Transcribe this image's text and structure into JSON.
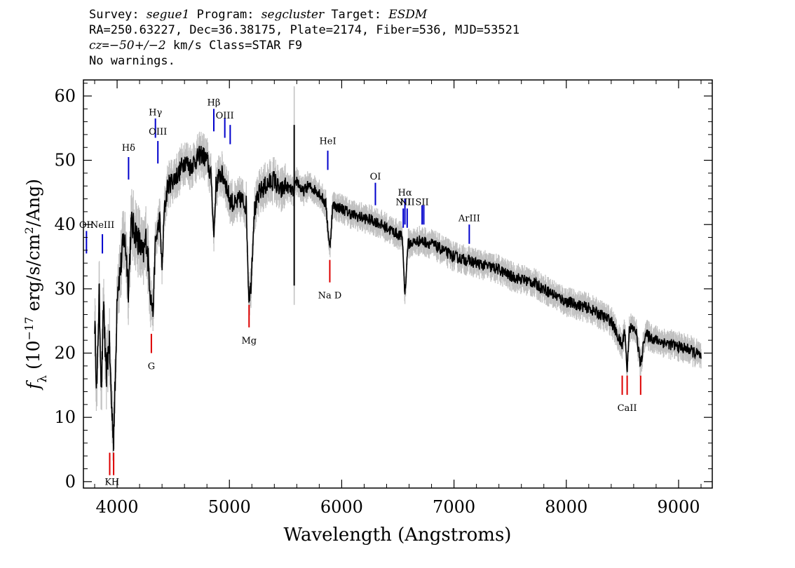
{
  "header": {
    "line1": {
      "survey_label": "Survey: ",
      "survey": "segue1",
      "program_label": " Program: ",
      "program": "segcluster",
      "target_label": " Target: ",
      "target": "ESDM"
    },
    "line2": "RA=250.63227, Dec=36.38175, Plate=2174, Fiber=536, MJD=53521",
    "line3": {
      "cz_label": "cz",
      "cz_eq": "=",
      "cz_value": "−50+/−2",
      "cz_rest": " km/s Class=STAR F9"
    },
    "line4": "No warnings."
  },
  "chart_data": {
    "type": "line",
    "title": "",
    "xlabel": "Wavelength (Angstroms)",
    "ylabel_pre": "f",
    "ylabel_sub": "λ",
    "ylabel_mid": " (10",
    "ylabel_sup": "−17",
    "ylabel_post": " erg/s/cm",
    "ylabel_sup2": "2",
    "ylabel_end": "/Ang)",
    "xlim": [
      3700,
      9300
    ],
    "ylim": [
      -1,
      62.5
    ],
    "xticks": [
      4000,
      5000,
      6000,
      7000,
      8000,
      9000
    ],
    "yticks": [
      0,
      10,
      20,
      30,
      40,
      50,
      60
    ],
    "colors": {
      "flux": "#000000",
      "error": "#c0c0c0",
      "emission": "#0000cc",
      "absorption": "#dd0000"
    },
    "spectrum_anchors": [
      [
        3800,
        25
      ],
      [
        3820,
        14
      ],
      [
        3840,
        30
      ],
      [
        3860,
        14
      ],
      [
        3880,
        28
      ],
      [
        3900,
        16
      ],
      [
        3930,
        22
      ],
      [
        3950,
        12
      ],
      [
        3968,
        7
      ],
      [
        3985,
        16
      ],
      [
        4000,
        30
      ],
      [
        4030,
        33
      ],
      [
        4060,
        38
      ],
      [
        4080,
        36
      ],
      [
        4101,
        30
      ],
      [
        4125,
        40
      ],
      [
        4160,
        39
      ],
      [
        4200,
        37
      ],
      [
        4230,
        35
      ],
      [
        4260,
        38
      ],
      [
        4300,
        29
      ],
      [
        4320,
        26
      ],
      [
        4340,
        37
      ],
      [
        4380,
        41
      ],
      [
        4400,
        33
      ],
      [
        4420,
        42
      ],
      [
        4450,
        46
      ],
      [
        4500,
        47
      ],
      [
        4550,
        48
      ],
      [
        4600,
        50
      ],
      [
        4650,
        49
      ],
      [
        4700,
        50
      ],
      [
        4750,
        51
      ],
      [
        4800,
        50
      ],
      [
        4840,
        47
      ],
      [
        4861,
        38
      ],
      [
        4880,
        46
      ],
      [
        4920,
        48
      ],
      [
        4960,
        47
      ],
      [
        5000,
        44
      ],
      [
        5050,
        43
      ],
      [
        5100,
        44
      ],
      [
        5150,
        43
      ],
      [
        5172,
        29
      ],
      [
        5190,
        30
      ],
      [
        5220,
        42
      ],
      [
        5270,
        45
      ],
      [
        5320,
        46
      ],
      [
        5400,
        47
      ],
      [
        5450,
        45
      ],
      [
        5500,
        46
      ],
      [
        5577,
        45
      ],
      [
        5600,
        47
      ],
      [
        5650,
        45
      ],
      [
        5700,
        46
      ],
      [
        5750,
        45.5
      ],
      [
        5800,
        45
      ],
      [
        5860,
        43
      ],
      [
        5893,
        36
      ],
      [
        5920,
        43
      ],
      [
        6000,
        42.5
      ],
      [
        6100,
        41.5
      ],
      [
        6200,
        41
      ],
      [
        6300,
        40.5
      ],
      [
        6400,
        39.5
      ],
      [
        6500,
        38.5
      ],
      [
        6540,
        38
      ],
      [
        6563,
        29
      ],
      [
        6590,
        37
      ],
      [
        6700,
        37.5
      ],
      [
        6800,
        37
      ],
      [
        6900,
        36
      ],
      [
        7000,
        35
      ],
      [
        7100,
        34.5
      ],
      [
        7200,
        34
      ],
      [
        7300,
        33.5
      ],
      [
        7400,
        33
      ],
      [
        7500,
        32
      ],
      [
        7600,
        31.5
      ],
      [
        7700,
        31
      ],
      [
        7800,
        30
      ],
      [
        7900,
        29
      ],
      [
        8000,
        28
      ],
      [
        8100,
        27.5
      ],
      [
        8200,
        27
      ],
      [
        8300,
        26
      ],
      [
        8400,
        25
      ],
      [
        8498,
        21
      ],
      [
        8520,
        24
      ],
      [
        8542,
        17
      ],
      [
        8560,
        24
      ],
      [
        8620,
        23.5
      ],
      [
        8662,
        18
      ],
      [
        8700,
        23
      ],
      [
        8800,
        22
      ],
      [
        8900,
        21.5
      ],
      [
        9000,
        21
      ],
      [
        9100,
        20.5
      ],
      [
        9200,
        19.5
      ]
    ],
    "spikes": [
      [
        5577,
        55.5,
        30.5
      ]
    ],
    "emission_lines": [
      {
        "label": "OII",
        "x": 3727,
        "y0": 35.5,
        "y1": 39,
        "label_y": 39.5
      },
      {
        "label": "NeIII",
        "x": 3869,
        "y0": 35.5,
        "y1": 38.5,
        "label_y": 39.5
      },
      {
        "label": "Hδ",
        "x": 4102,
        "y0": 47,
        "y1": 50.5,
        "label_y": 51.5
      },
      {
        "label": "Hγ",
        "x": 4341,
        "y0": 53.5,
        "y1": 56.5,
        "label_y": 57
      },
      {
        "label": "OIII",
        "x": 4363,
        "y0": 49.5,
        "y1": 53,
        "label_y": 54
      },
      {
        "label": "Hβ",
        "x": 4861,
        "y0": 54.5,
        "y1": 58,
        "label_y": 58.5
      },
      {
        "label": "OIII",
        "x": 4959,
        "y0": 53.5,
        "y1": 56.5,
        "label_y": 56.5
      },
      {
        "label": "OIII",
        "x": 5007,
        "y0": 52.5,
        "y1": 55.5,
        "label_y": -100
      },
      {
        "label": "HeI",
        "x": 5876,
        "y0": 48.5,
        "y1": 51.5,
        "label_y": 52.5
      },
      {
        "label": "OI",
        "x": 6300,
        "y0": 43,
        "y1": 46.5,
        "label_y": 47
      },
      {
        "label": "NII",
        "x": 6548,
        "y0": 39.5,
        "y1": 42.5,
        "label_y": 43
      },
      {
        "label": "Hα",
        "x": 6563,
        "y0": 40,
        "y1": 44,
        "label_y": 44.5
      },
      {
        "label": "NII",
        "x": 6583,
        "y0": 39.5,
        "y1": 42.5,
        "label_y": 43
      },
      {
        "label": "SII",
        "x": 6716,
        "y0": 40,
        "y1": 43,
        "label_y": 43
      },
      {
        "label": "SII",
        "x": 6731,
        "y0": 40,
        "y1": 43,
        "label_y": -100
      },
      {
        "label": "ArIII",
        "x": 7136,
        "y0": 37,
        "y1": 40,
        "label_y": 40.5
      }
    ],
    "absorption_lines": [
      {
        "label": "K",
        "x": 3934,
        "y0": 1,
        "y1": 4.5,
        "label_y": -0.5,
        "label_x": 3920
      },
      {
        "label": "H",
        "x": 3969,
        "y0": 1,
        "y1": 4.5,
        "label_y": -0.5,
        "label_x": 3984
      },
      {
        "label": "G",
        "x": 4305,
        "y0": 20,
        "y1": 23,
        "label_y": 17.5
      },
      {
        "label": "Mg",
        "x": 5175,
        "y0": 24,
        "y1": 27.5,
        "label_y": 21.5
      },
      {
        "label": "Na D",
        "x": 5894,
        "y0": 31,
        "y1": 34.5,
        "label_y": 28.5
      },
      {
        "label": "CaII",
        "x": 8498,
        "y0": 13.5,
        "y1": 16.5,
        "label_y": -100
      },
      {
        "label": "CaII",
        "x": 8542,
        "y0": 13.5,
        "y1": 16.5,
        "label_y": 11
      },
      {
        "label": "CaII",
        "x": 8662,
        "y0": 13.5,
        "y1": 16.5,
        "label_y": -100
      }
    ]
  }
}
